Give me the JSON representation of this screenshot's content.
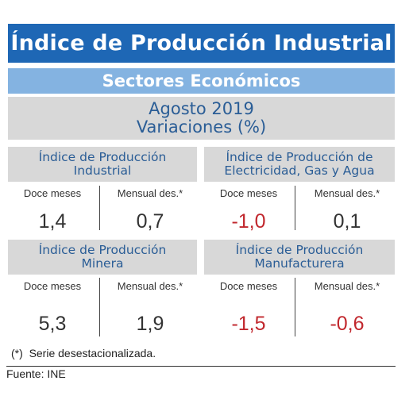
{
  "header": {
    "title": "Índice de Producción Industrial",
    "subtitle": "Sectores Económicos",
    "period": "Agosto 2019",
    "measure": "Variaciones (%)"
  },
  "panels": [
    {
      "title_line1": "Índice de Producción",
      "title_line2": "Industrial",
      "col1_label": "Doce meses",
      "col2_label": "Mensual des.*",
      "col1_value": "1,4",
      "col2_value": "0,7"
    },
    {
      "title_line1": "Índice de Producción de",
      "title_line2": "Electricidad, Gas y Agua",
      "col1_label": "Doce meses",
      "col2_label": "Mensual des.*",
      "col1_value": "-1,0",
      "col2_value": "0,1"
    },
    {
      "title_line1": "Índice de Producción",
      "title_line2": "Minera",
      "col1_label": "Doce meses",
      "col2_label": "Mensual des.*",
      "col1_value": "5,3",
      "col2_value": "1,9"
    },
    {
      "title_line1": "Índice de Producción",
      "title_line2": "Manufacturera",
      "col1_label": "Doce meses",
      "col2_label": "Mensual des.*",
      "col1_value": "-1,5",
      "col2_value": "-0,6"
    }
  ],
  "footnote": {
    "marker": "(*)",
    "text": "Serie desestacionalizada."
  },
  "source": "Fuente: INE",
  "colors": {
    "title_bg": "#1e67b5",
    "subtitle_bg": "#84b3e1",
    "panel_bg": "#d8d8d8",
    "heading_text": "#2a5d96",
    "negative_value": "#c1272d"
  }
}
